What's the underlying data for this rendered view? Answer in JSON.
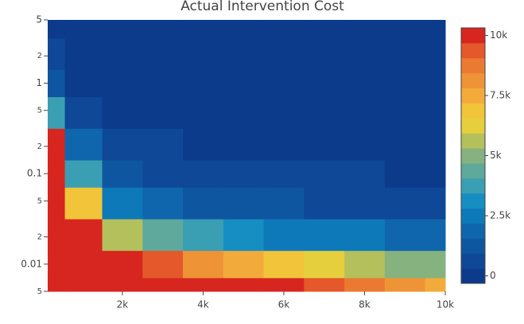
{
  "chart_data": {
    "type": "contour",
    "title": "Actual Intervention Cost",
    "x": [
      150,
      1000,
      2000,
      3000,
      4000,
      5000,
      6000,
      7000,
      8000,
      9000,
      10000
    ],
    "y": [
      0.005,
      0.01,
      0.02,
      0.05,
      0.1,
      0.2,
      0.5,
      1,
      2,
      5
    ],
    "z": [
      [
        50000,
        30000,
        18000,
        14000,
        12000,
        11000,
        10000,
        9500,
        9000,
        8500,
        8000
      ],
      [
        40000,
        20000,
        12000,
        9500,
        8500,
        7500,
        7000,
        6500,
        6000,
        5500,
        5000
      ],
      [
        30000,
        13000,
        6000,
        4500,
        3800,
        3300,
        3000,
        2700,
        2500,
        2300,
        2100
      ],
      [
        20000,
        7000,
        2800,
        2000,
        1700,
        1500,
        1300,
        1200,
        1100,
        1000,
        950
      ],
      [
        15000,
        4000,
        1600,
        1200,
        1000,
        900,
        800,
        720,
        650,
        600,
        550
      ],
      [
        12000,
        2200,
        900,
        700,
        600,
        520,
        470,
        420,
        380,
        350,
        320
      ],
      [
        4000,
        900,
        450,
        380,
        320,
        280,
        250,
        220,
        200,
        180,
        170
      ],
      [
        1800,
        500,
        300,
        250,
        200,
        170,
        150,
        130,
        120,
        110,
        100
      ],
      [
        900,
        300,
        200,
        150,
        120,
        100,
        90,
        80,
        70,
        60,
        55
      ],
      [
        500,
        200,
        100,
        80,
        60,
        50,
        40,
        35,
        30,
        25,
        20
      ]
    ],
    "xlim": [
      150,
      10000
    ],
    "xticks": [
      {
        "value": 2000,
        "label": "2k"
      },
      {
        "value": 4000,
        "label": "4k"
      },
      {
        "value": 6000,
        "label": "6k"
      },
      {
        "value": 8000,
        "label": "8k"
      },
      {
        "value": 10000,
        "label": "10k"
      }
    ],
    "ylim": [
      0.005,
      5
    ],
    "ylog": true,
    "yticks": [
      {
        "value": 0.005,
        "label": "5"
      },
      0.01,
      {
        "value": 0.02,
        "label": "2"
      },
      {
        "value": 0.05,
        "label": "5"
      },
      0.1,
      {
        "value": 0.2,
        "label": "2"
      },
      {
        "value": 0.5,
        "label": "5"
      },
      1,
      {
        "value": 2,
        "label": "2"
      },
      5
    ],
    "zlim": [
      0,
      10000
    ],
    "zticks": [
      0,
      {
        "value": 2500,
        "label": "2.5k"
      },
      {
        "value": 5000,
        "label": "5k"
      },
      {
        "value": 7500,
        "label": "7.5k"
      },
      {
        "value": 10000,
        "label": "10k"
      }
    ],
    "colorscale": [
      "#0c3b8c",
      "#0e4896",
      "#0f56a0",
      "#0f66ac",
      "#0e79b8",
      "#168ec2",
      "#3a9fb3",
      "#5ea99b",
      "#86b27f",
      "#b4c05c",
      "#e6cf3c",
      "#f2c43a",
      "#f2ab3b",
      "#ef9436",
      "#ea7a31",
      "#e5582b",
      "#d7261f"
    ]
  }
}
